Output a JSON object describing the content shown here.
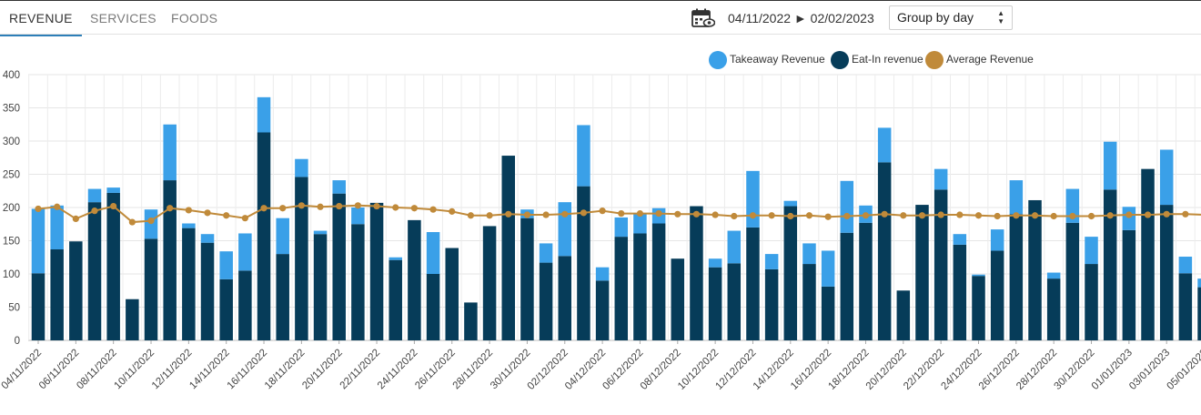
{
  "tabs": [
    {
      "label": "REVENUE"
    },
    {
      "label": "SERVICES"
    },
    {
      "label": "FOODS"
    }
  ],
  "toolbar": {
    "date_range": "04/11/2022 ► 02/02/2023",
    "group_by": "Group by day",
    "calendar_icon": "calendar-eye-icon"
  },
  "colors": {
    "takeaway": "#3aa0e8",
    "eatin": "#063c59",
    "average": "#c08a3a"
  },
  "chart_data": {
    "type": "bar",
    "stacked": true,
    "ylim": [
      0,
      400
    ],
    "yticks": [
      0,
      50,
      100,
      150,
      200,
      250,
      300,
      350,
      400
    ],
    "grid": true,
    "legend_position": "top-right",
    "xlabel": "",
    "ylabel": "",
    "title": "",
    "series": [
      {
        "name": "Takeaway Revenue",
        "kind": "bar"
      },
      {
        "name": "Eat-In revenue",
        "kind": "bar"
      },
      {
        "name": "Average Revenue",
        "kind": "line"
      }
    ],
    "categories": [
      "04/11/2022",
      "05/11/2022",
      "06/11/2022",
      "07/11/2022",
      "08/11/2022",
      "09/11/2022",
      "10/11/2022",
      "11/11/2022",
      "12/11/2022",
      "13/11/2022",
      "14/11/2022",
      "15/11/2022",
      "16/11/2022",
      "17/11/2022",
      "18/11/2022",
      "19/11/2022",
      "20/11/2022",
      "21/11/2022",
      "22/11/2022",
      "23/11/2022",
      "24/11/2022",
      "25/11/2022",
      "26/11/2022",
      "27/11/2022",
      "28/11/2022",
      "29/11/2022",
      "30/11/2022",
      "01/12/2022",
      "02/12/2022",
      "03/12/2022",
      "04/12/2022",
      "05/12/2022",
      "06/12/2022",
      "07/12/2022",
      "08/12/2022",
      "09/12/2022",
      "10/12/2022",
      "11/12/2022",
      "12/12/2022",
      "13/12/2022",
      "14/12/2022",
      "15/12/2022",
      "16/12/2022",
      "17/12/2022",
      "18/12/2022",
      "19/12/2022",
      "20/12/2022",
      "21/12/2022",
      "22/12/2022",
      "23/12/2022",
      "24/12/2022",
      "25/12/2022",
      "26/12/2022",
      "27/12/2022",
      "28/12/2022",
      "29/12/2022",
      "30/12/2022",
      "31/12/2022",
      "01/01/2023",
      "02/01/2023",
      "03/01/2023",
      "04/01/2023",
      "05/01/2023"
    ],
    "tick_labels": [
      "04/11/2022",
      "06/11/2022",
      "08/11/2022",
      "10/11/2022",
      "12/11/2022",
      "14/11/2022",
      "16/11/2022",
      "18/11/2022",
      "20/11/2022",
      "22/11/2022",
      "24/11/2022",
      "26/11/2022",
      "28/11/2022",
      "30/11/2022",
      "02/12/2022",
      "04/12/2022",
      "06/12/2022",
      "08/12/2022",
      "10/12/2022",
      "12/12/2022",
      "14/12/2022",
      "16/12/2022",
      "18/12/2022",
      "20/12/2022",
      "22/12/2022",
      "24/12/2022",
      "26/12/2022",
      "28/12/2022",
      "30/12/2022",
      "01/01/2023",
      "03/01/2023",
      "05/01/2023"
    ],
    "eatin": [
      101,
      137,
      149,
      208,
      222,
      62,
      153,
      241,
      169,
      147,
      92,
      105,
      313,
      130,
      246,
      160,
      221,
      175,
      207,
      121,
      181,
      100,
      139,
      57,
      172,
      278,
      184,
      117,
      127,
      232,
      90,
      156,
      161,
      176,
      123,
      202,
      110,
      116,
      170,
      107,
      202,
      115,
      81,
      162,
      177,
      268,
      75,
      204,
      227,
      144,
      97,
      135,
      190,
      211,
      93,
      177,
      115,
      227,
      166,
      258,
      204,
      101,
      80
    ],
    "takeaway": [
      97,
      66,
      0,
      20,
      8,
      0,
      44,
      84,
      7,
      13,
      42,
      56,
      53,
      54,
      27,
      5,
      20,
      25,
      0,
      4,
      0,
      63,
      0,
      0,
      0,
      0,
      13,
      29,
      81,
      92,
      20,
      29,
      30,
      23,
      0,
      0,
      13,
      49,
      85,
      23,
      8,
      31,
      54,
      78,
      26,
      52,
      0,
      0,
      31,
      16,
      2,
      32,
      51,
      0,
      9,
      51,
      41,
      72,
      35,
      0,
      83,
      25,
      13
    ],
    "average": [
      198,
      201,
      183,
      195,
      202,
      178,
      180,
      199,
      196,
      192,
      188,
      184,
      199,
      199,
      203,
      201,
      202,
      203,
      202,
      200,
      199,
      197,
      194,
      188,
      188,
      190,
      189,
      189,
      190,
      192,
      195,
      191,
      191,
      191,
      190,
      190,
      189,
      187,
      188,
      188,
      187,
      188,
      186,
      187,
      188,
      190,
      188,
      188,
      189,
      189,
      188,
      187,
      188,
      188,
      187,
      187,
      187,
      188,
      189,
      189,
      190,
      190,
      189
    ]
  }
}
